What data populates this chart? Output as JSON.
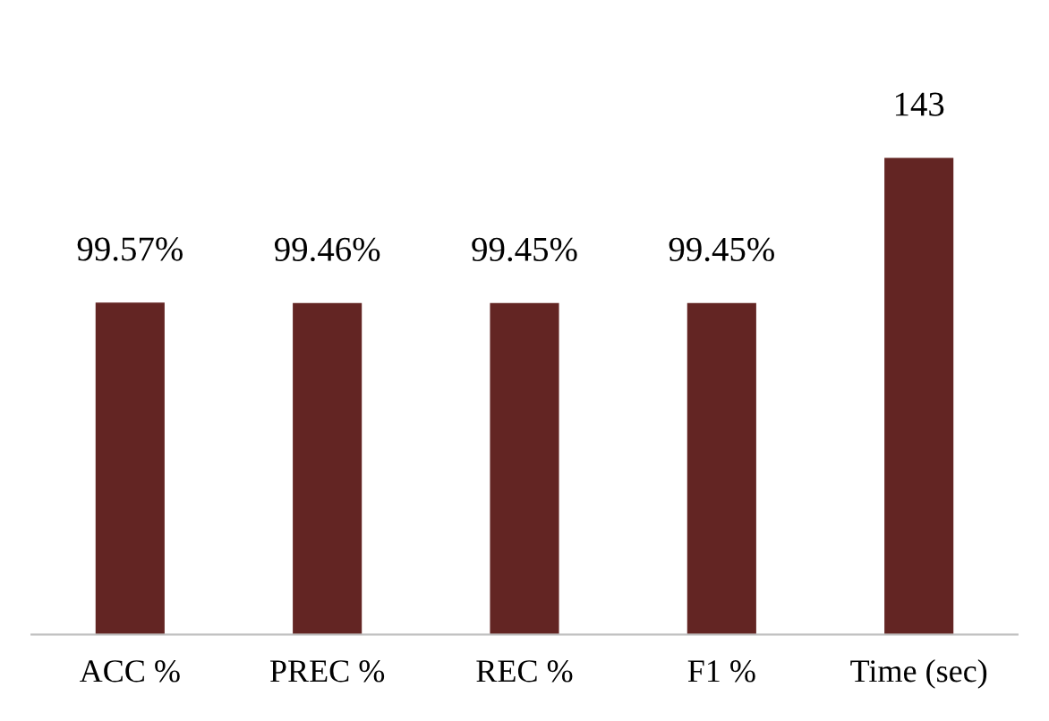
{
  "chart_data": {
    "type": "bar",
    "categories": [
      "ACC %",
      "PREC %",
      "REC %",
      "F1 %",
      "Time (sec)"
    ],
    "values": [
      99.57,
      99.46,
      99.45,
      99.45,
      143
    ],
    "value_labels": [
      "99.57%",
      "99.46%",
      "99.45%",
      "99.45%",
      "143"
    ],
    "color": "#632523",
    "grid": false,
    "legend": false
  }
}
